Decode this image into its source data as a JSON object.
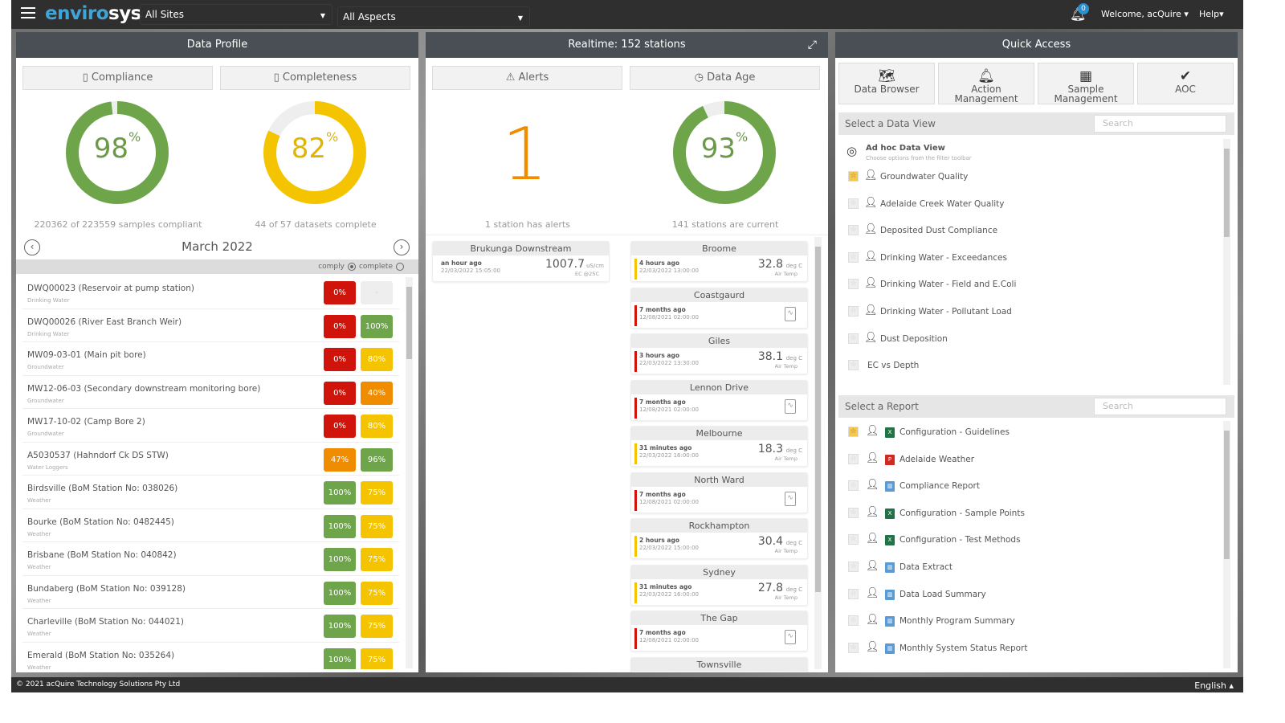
{
  "topbar": {
    "logo_a": "enviro",
    "logo_b": "sys",
    "sites": "All Sites",
    "aspects": "All Aspects",
    "notifications": "0",
    "welcome": "Welcome, acQuire ▾",
    "help": "Help▾"
  },
  "colors": {
    "red": "#d0140c",
    "green": "#6ea54a",
    "yellow": "#f5c400",
    "orange": "#f08c00",
    "grey": "#eeeeee",
    "brand": "#3fa5d8"
  },
  "profile": {
    "title": "Data Profile",
    "tab_compliance": "Compliance",
    "tab_completeness": "Completeness",
    "compliance_pct": 98,
    "compliance_caption": "220362 of 223559 samples compliant",
    "completeness_pct": 82,
    "completeness_caption": "44 of 57 datasets complete",
    "month": "March 2022",
    "legend_comply": "comply",
    "legend_complete": "complete",
    "rows": [
      {
        "name": "DWQ00023 (Reservoir at pump station)",
        "cat": "Drinking Water",
        "comply": "0%",
        "cc": "red",
        "complete": "-",
        "pc": "grey"
      },
      {
        "name": "DWQ00026 (River East Branch Weir)",
        "cat": "Drinking Water",
        "comply": "0%",
        "cc": "red",
        "complete": "100%",
        "pc": "green"
      },
      {
        "name": "MW09-03-01 (Main pit bore)",
        "cat": "Groundwater",
        "comply": "0%",
        "cc": "red",
        "complete": "80%",
        "pc": "yellow"
      },
      {
        "name": "MW12-06-03 (Secondary downstream monitoring bore)",
        "cat": "Groundwater",
        "comply": "0%",
        "cc": "red",
        "complete": "40%",
        "pc": "orange"
      },
      {
        "name": "MW17-10-02 (Camp Bore 2)",
        "cat": "Groundwater",
        "comply": "0%",
        "cc": "red",
        "complete": "80%",
        "pc": "yellow"
      },
      {
        "name": "A5030537 (Hahndorf Ck DS STW)",
        "cat": "Water Loggers",
        "comply": "47%",
        "cc": "orange",
        "complete": "96%",
        "pc": "green"
      },
      {
        "name": "Birdsville (BoM Station No: 038026)",
        "cat": "Weather",
        "comply": "100%",
        "cc": "green",
        "complete": "75%",
        "pc": "yellow"
      },
      {
        "name": "Bourke (BoM Station No: 0482445)",
        "cat": "Weather",
        "comply": "100%",
        "cc": "green",
        "complete": "75%",
        "pc": "yellow"
      },
      {
        "name": "Brisbane (BoM Station No: 040842)",
        "cat": "Weather",
        "comply": "100%",
        "cc": "green",
        "complete": "75%",
        "pc": "yellow"
      },
      {
        "name": "Bundaberg (BoM Station No: 039128)",
        "cat": "Weather",
        "comply": "100%",
        "cc": "green",
        "complete": "75%",
        "pc": "yellow"
      },
      {
        "name": "Charleville (BoM Station No: 044021)",
        "cat": "Weather",
        "comply": "100%",
        "cc": "green",
        "complete": "75%",
        "pc": "yellow"
      },
      {
        "name": "Emerald (BoM Station No: 035264)",
        "cat": "Weather",
        "comply": "100%",
        "cc": "green",
        "complete": "75%",
        "pc": "yellow"
      }
    ]
  },
  "realtime": {
    "title": "Realtime: 152 stations",
    "tab_alerts": "Alerts",
    "tab_age": "Data Age",
    "alert_count": "1",
    "alert_caption": "1 station has alerts",
    "age_pct": 93,
    "age_caption": "141 stations are current",
    "alert_stations": [
      {
        "name": "Brukunga Downstream",
        "ago": "an hour ago",
        "date": "22/03/2022 15:05:00",
        "value": "1007.7",
        "unit": "uS/cm",
        "label": "EC @25C"
      }
    ],
    "stations": [
      {
        "name": "Broome",
        "ago": "4 hours ago",
        "date": "22/03/2022 13:00:00",
        "value": "32.8",
        "unit": "deg C",
        "label": "Air Temp",
        "bar": "yellow"
      },
      {
        "name": "Coastgaurd",
        "ago": "7 months ago",
        "date": "12/08/2021 02:00:00",
        "bar": "red"
      },
      {
        "name": "Giles",
        "ago": "3 hours ago",
        "date": "22/03/2022 13:30:00",
        "value": "38.1",
        "unit": "deg C",
        "label": "Air Temp",
        "bar": "red"
      },
      {
        "name": "Lennon Drive",
        "ago": "7 months ago",
        "date": "12/08/2021 02:00:00",
        "bar": "red"
      },
      {
        "name": "Melbourne",
        "ago": "31 minutes ago",
        "date": "22/03/2022 16:00:00",
        "value": "18.3",
        "unit": "deg C",
        "label": "Air Temp",
        "bar": "yellow"
      },
      {
        "name": "North Ward",
        "ago": "7 months ago",
        "date": "12/08/2021 02:00:00",
        "bar": "red"
      },
      {
        "name": "Rockhampton",
        "ago": "2 hours ago",
        "date": "22/03/2022 15:00:00",
        "value": "30.4",
        "unit": "deg C",
        "label": "Air Temp",
        "bar": "yellow"
      },
      {
        "name": "Sydney",
        "ago": "31 minutes ago",
        "date": "22/03/2022 16:00:00",
        "value": "27.8",
        "unit": "deg C",
        "label": "Air Temp",
        "bar": "yellow"
      },
      {
        "name": "The Gap",
        "ago": "7 months ago",
        "date": "12/08/2021 02:00:00",
        "bar": "red"
      },
      {
        "name": "Townsville"
      }
    ]
  },
  "quick": {
    "title": "Quick Access",
    "buttons": [
      {
        "label": "Data Browser",
        "icon": "map-icon"
      },
      {
        "label": "Action Management",
        "icon": "alarm-bell-icon"
      },
      {
        "label": "Sample Management",
        "icon": "calendar-icon"
      },
      {
        "label": "AOC",
        "icon": "check-circle-icon"
      }
    ],
    "dataview_label": "Select a Data View",
    "dataview_search": "Search",
    "adhoc_title": "Ad hoc Data View",
    "adhoc_sub": "Choose options from the filter toolbar",
    "dataviews": [
      {
        "name": "Groundwater Quality",
        "starred": true
      },
      {
        "name": "Adelaide Creek Water Quality"
      },
      {
        "name": "Deposited Dust Compliance"
      },
      {
        "name": "Drinking Water - Exceedances"
      },
      {
        "name": "Drinking Water - Field and E.Coli"
      },
      {
        "name": "Drinking Water - Pollutant Load"
      },
      {
        "name": "Dust Deposition"
      },
      {
        "name": "EC vs Depth",
        "nouser": true
      }
    ],
    "report_label": "Select a Report",
    "report_search": "Search",
    "reports": [
      {
        "name": "Configuration - Guidelines",
        "type": "excel",
        "starred": true
      },
      {
        "name": "Adelaide Weather",
        "type": "pdf"
      },
      {
        "name": "Compliance Report",
        "type": "chart"
      },
      {
        "name": "Configuration - Sample Points",
        "type": "excel"
      },
      {
        "name": "Configuration - Test Methods",
        "type": "excel"
      },
      {
        "name": "Data Extract",
        "type": "chart"
      },
      {
        "name": "Data Load Summary",
        "type": "chart"
      },
      {
        "name": "Monthly Program Summary",
        "type": "chart"
      },
      {
        "name": "Monthly System Status Report",
        "type": "chart"
      }
    ]
  },
  "footer": {
    "copyright": "© 2021 acQuire Technology Solutions Pty Ltd",
    "language": "English ▴"
  }
}
